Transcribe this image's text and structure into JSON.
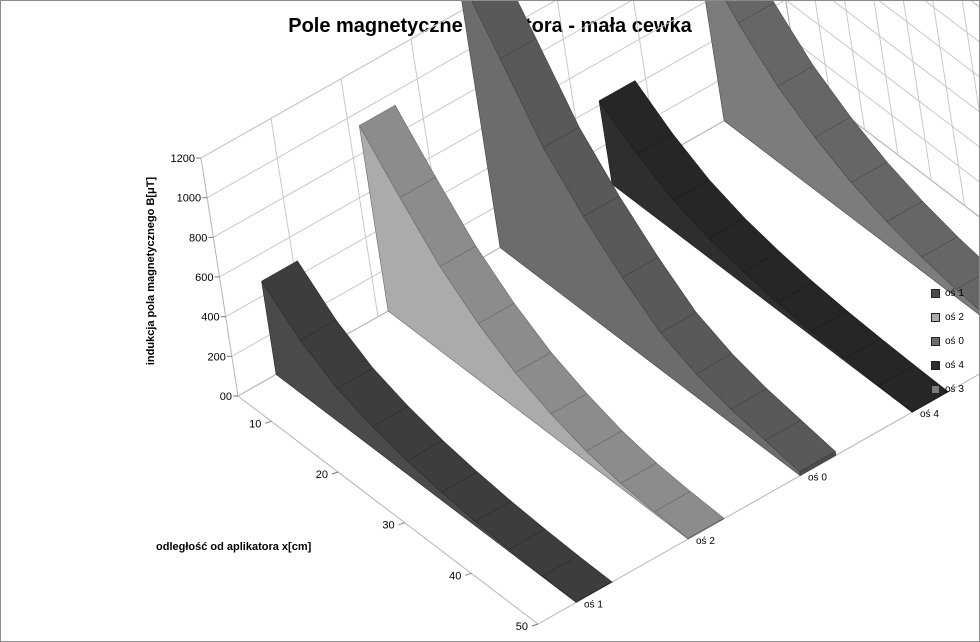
{
  "chart_data": {
    "type": "area",
    "title": "Pole magnetyczne aplikatora  - mała cewka",
    "ylabel": "indukcja pola magnetycznego B[μT]",
    "xlabel": "odległość od aplikatora x[cm]",
    "y_ticks": [
      "00",
      "200",
      "400",
      "600",
      "800",
      "1000",
      "1200"
    ],
    "ylim": [
      0,
      1200
    ],
    "x_ticks": [
      "10",
      "20",
      "30",
      "40",
      "50"
    ],
    "x": [
      5,
      10,
      15,
      20,
      25,
      30,
      35,
      40,
      45,
      50
    ],
    "grid": true,
    "legend_position": "right",
    "series": [
      {
        "name": "oś 1",
        "color": "#4a4a4a",
        "values": [
          470,
          300,
          185,
          120,
          75,
          45,
          25,
          12,
          5,
          2
        ]
      },
      {
        "name": "oś 2",
        "color": "#ababab",
        "values": [
          935,
          700,
          480,
          320,
          200,
          120,
          60,
          25,
          10,
          3
        ]
      },
      {
        "name": "oś 0",
        "color": "#6c6c6c",
        "values": [
          1395,
          1080,
          760,
          540,
          360,
          210,
          130,
          80,
          50,
          20
        ]
      },
      {
        "name": "oś 4",
        "color": "#2e2e2e",
        "values": [
          420,
          280,
          175,
          110,
          70,
          42,
          25,
          14,
          7,
          3
        ]
      },
      {
        "name": "oś 3",
        "color": "#7c7c7c",
        "values": [
          865,
          620,
          430,
          300,
          200,
          130,
          80,
          45,
          20,
          8
        ]
      }
    ],
    "depth_order": [
      "oś 1",
      "oś 2",
      "oś 0",
      "oś 4",
      "oś 3"
    ]
  }
}
